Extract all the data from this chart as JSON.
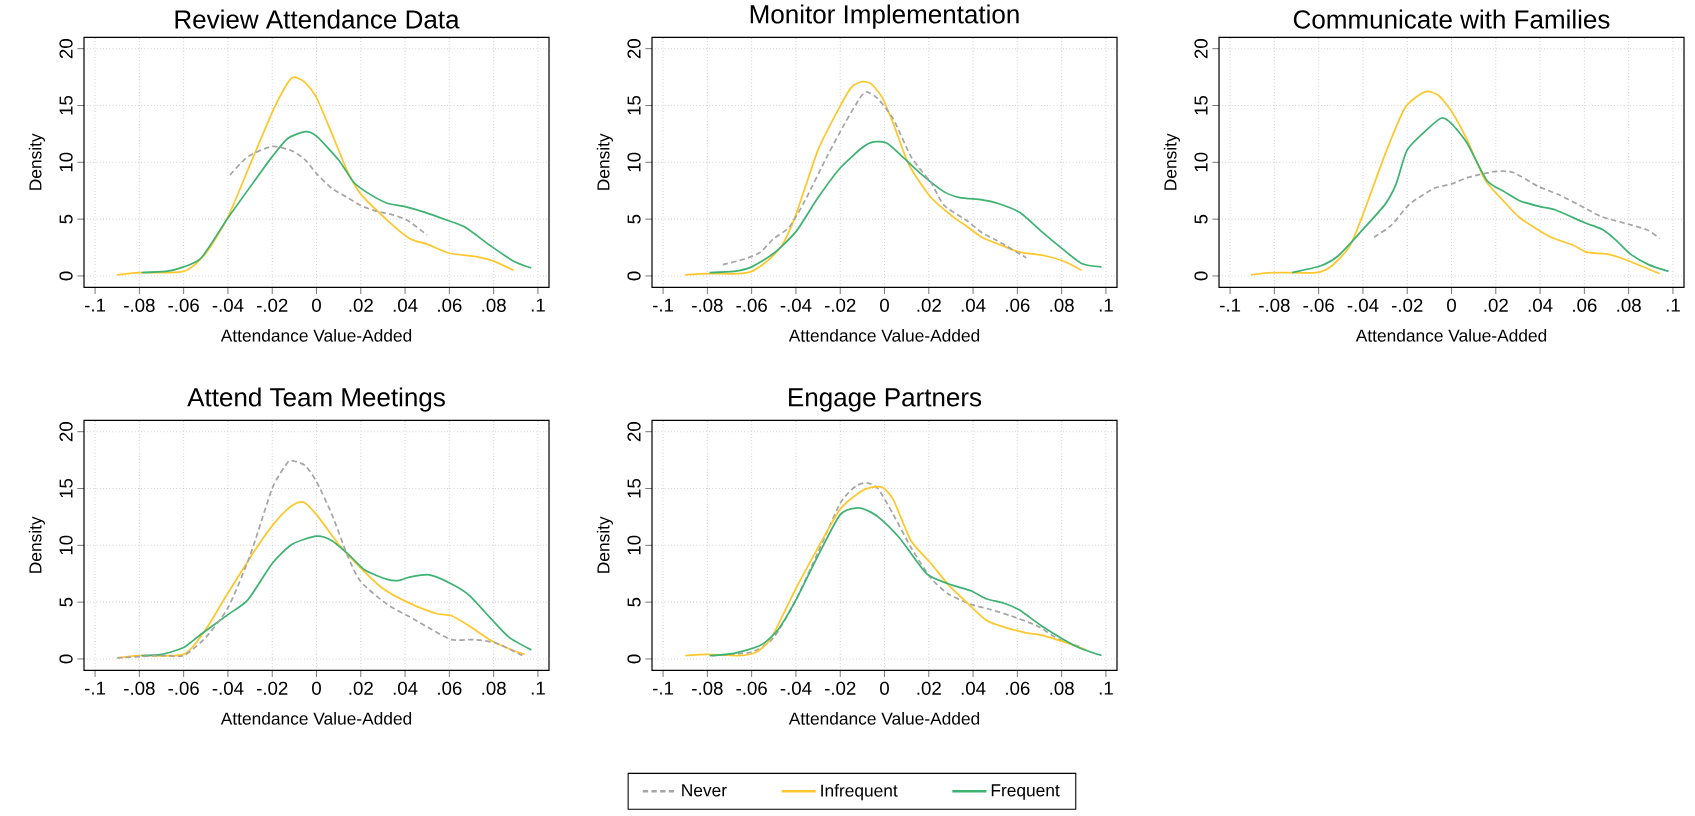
{
  "chart_data": [
    {
      "type": "line",
      "title": "Review Attendance Data",
      "xlabel": "Attendance Value-Added",
      "ylabel": "Density",
      "grid": true,
      "xlim": [
        -0.105,
        0.105
      ],
      "ylim": [
        -1,
        21
      ],
      "xticks": [
        {
          "value": -0.1,
          "label": "-.1"
        },
        {
          "value": -0.08,
          "label": "-.08"
        },
        {
          "value": -0.06,
          "label": "-.06"
        },
        {
          "value": -0.04,
          "label": "-.04"
        },
        {
          "value": -0.02,
          "label": "-.02"
        },
        {
          "value": 0,
          "label": "0"
        },
        {
          "value": 0.02,
          "label": ".02"
        },
        {
          "value": 0.04,
          "label": ".04"
        },
        {
          "value": 0.06,
          "label": ".06"
        },
        {
          "value": 0.08,
          "label": ".08"
        },
        {
          "value": 0.1,
          "label": ".1"
        }
      ],
      "yticks": [
        0,
        5,
        10,
        15,
        20
      ],
      "series": [
        {
          "color": "#a6a6a6",
          "line_style": "dashed",
          "x": [
            -0.039,
            -0.031,
            -0.02,
            -0.011,
            -0.005,
            0,
            0.007,
            0.014,
            0.02,
            0.027,
            0.034,
            0.041,
            0.05
          ],
          "values": [
            8.9,
            10.5,
            11.4,
            11.0,
            10.2,
            9.0,
            7.7,
            6.9,
            6.2,
            5.7,
            5.4,
            4.9,
            3.6
          ]
        },
        {
          "color": "#ffc72c",
          "line_style": "solid",
          "x": [
            -0.09,
            -0.08,
            -0.06,
            -0.05,
            -0.04,
            -0.03,
            -0.02,
            -0.013,
            -0.01,
            -0.005,
            0,
            0.007,
            0.014,
            0.02,
            0.032,
            0.042,
            0.05,
            0.06,
            0.072,
            0.08,
            0.089
          ],
          "values": [
            0.1,
            0.3,
            0.4,
            2.0,
            5.2,
            9.8,
            14.4,
            17.0,
            17.5,
            17.0,
            15.7,
            12.5,
            9.2,
            7.2,
            4.9,
            3.3,
            2.8,
            2.0,
            1.7,
            1.3,
            0.5
          ]
        },
        {
          "color": "#3cb371",
          "line_style": "solid",
          "x": [
            -0.079,
            -0.068,
            -0.06,
            -0.052,
            -0.04,
            -0.026,
            -0.02,
            -0.013,
            -0.005,
            0,
            0.01,
            0.017,
            0.024,
            0.032,
            0.04,
            0.049,
            0.059,
            0.067,
            0.079,
            0.089,
            0.097
          ],
          "values": [
            0.3,
            0.4,
            0.8,
            1.6,
            5.1,
            8.9,
            10.5,
            12.1,
            12.7,
            12.3,
            10.2,
            8.2,
            7.2,
            6.4,
            6.1,
            5.6,
            4.9,
            4.3,
            2.6,
            1.3,
            0.7
          ]
        }
      ]
    },
    {
      "type": "line",
      "title": "Monitor Implementation",
      "xlabel": "Attendance Value-Added",
      "ylabel": "Density",
      "grid": true,
      "xlim": [
        -0.105,
        0.105
      ],
      "ylim": [
        -1,
        21
      ],
      "xticks": [
        {
          "value": -0.1,
          "label": "-.1"
        },
        {
          "value": -0.08,
          "label": "-.08"
        },
        {
          "value": -0.06,
          "label": "-.06"
        },
        {
          "value": -0.04,
          "label": "-.04"
        },
        {
          "value": -0.02,
          "label": "-.02"
        },
        {
          "value": 0,
          "label": "0"
        },
        {
          "value": 0.02,
          "label": ".02"
        },
        {
          "value": 0.04,
          "label": ".04"
        },
        {
          "value": 0.06,
          "label": ".06"
        },
        {
          "value": 0.08,
          "label": ".08"
        },
        {
          "value": 0.1,
          "label": ".1"
        }
      ],
      "yticks": [
        0,
        5,
        10,
        15,
        20
      ],
      "series": [
        {
          "color": "#a6a6a6",
          "line_style": "dashed",
          "x": [
            -0.073,
            -0.063,
            -0.056,
            -0.05,
            -0.043,
            -0.036,
            -0.026,
            -0.018,
            -0.011,
            -0.008,
            -0.003,
            0.004,
            0.012,
            0.021,
            0.027,
            0.037,
            0.044,
            0.051,
            0.064
          ],
          "values": [
            1.0,
            1.5,
            2.1,
            3.3,
            4.3,
            6.6,
            10.5,
            13.4,
            15.7,
            16.2,
            15.6,
            13.8,
            10.5,
            8.2,
            6.2,
            4.9,
            3.8,
            3.1,
            1.6
          ]
        },
        {
          "color": "#ffc72c",
          "line_style": "solid",
          "x": [
            -0.09,
            -0.08,
            -0.066,
            -0.06,
            -0.053,
            -0.046,
            -0.04,
            -0.03,
            -0.021,
            -0.015,
            -0.01,
            -0.006,
            -0.001,
            0.004,
            0.011,
            0.021,
            0.031,
            0.037,
            0.044,
            0.054,
            0.061,
            0.072,
            0.081,
            0.089
          ],
          "values": [
            0.1,
            0.2,
            0.2,
            0.4,
            1.3,
            2.8,
            5.4,
            11.1,
            14.6,
            16.6,
            17.1,
            16.9,
            15.7,
            13.4,
            9.8,
            6.9,
            5.2,
            4.4,
            3.4,
            2.6,
            2.1,
            1.8,
            1.3,
            0.5
          ]
        },
        {
          "color": "#3cb371",
          "line_style": "solid",
          "x": [
            -0.079,
            -0.068,
            -0.06,
            -0.05,
            -0.04,
            -0.03,
            -0.02,
            -0.01,
            -0.005,
            0.001,
            0.007,
            0.017,
            0.027,
            0.034,
            0.044,
            0.051,
            0.061,
            0.071,
            0.079,
            0.089,
            0.098
          ],
          "values": [
            0.3,
            0.4,
            0.8,
            2.0,
            3.9,
            6.9,
            9.5,
            11.3,
            11.8,
            11.7,
            10.7,
            8.9,
            7.4,
            6.9,
            6.7,
            6.4,
            5.6,
            3.9,
            2.6,
            1.1,
            0.8
          ]
        }
      ]
    },
    {
      "type": "line",
      "title": "Communicate with Families",
      "xlabel": "Attendance Value-Added",
      "ylabel": "Density",
      "grid": true,
      "xlim": [
        -0.105,
        0.105
      ],
      "ylim": [
        -1,
        21
      ],
      "xticks": [
        {
          "value": -0.1,
          "label": "-.1"
        },
        {
          "value": -0.08,
          "label": "-.08"
        },
        {
          "value": -0.06,
          "label": "-.06"
        },
        {
          "value": -0.04,
          "label": "-.04"
        },
        {
          "value": -0.02,
          "label": "-.02"
        },
        {
          "value": 0,
          "label": "0"
        },
        {
          "value": 0.02,
          "label": ".02"
        },
        {
          "value": 0.04,
          "label": ".04"
        },
        {
          "value": 0.06,
          "label": ".06"
        },
        {
          "value": 0.08,
          "label": ".08"
        },
        {
          "value": 0.1,
          "label": ".1"
        }
      ],
      "yticks": [
        0,
        5,
        10,
        15,
        20
      ],
      "series": [
        {
          "color": "#a6a6a6",
          "line_style": "dashed",
          "x": [
            -0.035,
            -0.027,
            -0.019,
            -0.008,
            0,
            0.008,
            0.02,
            0.028,
            0.039,
            0.049,
            0.06,
            0.068,
            0.081,
            0.089,
            0.094
          ],
          "values": [
            3.4,
            4.5,
            6.3,
            7.7,
            8.1,
            8.7,
            9.2,
            9.1,
            7.9,
            7.1,
            6.0,
            5.2,
            4.5,
            4.0,
            3.3
          ]
        },
        {
          "color": "#ffc72c",
          "line_style": "solid",
          "x": [
            -0.0905,
            -0.08,
            -0.061,
            -0.054,
            -0.046,
            -0.04,
            -0.03,
            -0.021,
            -0.012,
            -0.006,
            0,
            0.007,
            0.015,
            0.023,
            0.031,
            0.044,
            0.055,
            0.061,
            0.071,
            0.079,
            0.094
          ],
          "values": [
            0.1,
            0.3,
            0.3,
            0.9,
            2.6,
            5.4,
            10.7,
            14.8,
            16.2,
            15.9,
            14.5,
            12.0,
            8.5,
            6.7,
            5.1,
            3.5,
            2.7,
            2.1,
            1.9,
            1.4,
            0.2
          ]
        },
        {
          "color": "#3cb371",
          "line_style": "solid",
          "x": [
            -0.072,
            -0.059,
            -0.051,
            -0.04,
            -0.03,
            -0.025,
            -0.02,
            -0.011,
            -0.0045,
            0,
            0.007,
            0.016,
            0.024,
            0.031,
            0.04,
            0.047,
            0.06,
            0.068,
            0.074,
            0.081,
            0.089,
            0.098
          ],
          "values": [
            0.3,
            0.9,
            1.8,
            4.1,
            6.3,
            8.1,
            11.1,
            12.9,
            13.9,
            13.4,
            11.7,
            8.4,
            7.4,
            6.6,
            6.1,
            5.8,
            4.7,
            4.1,
            3.2,
            1.9,
            1.0,
            0.4
          ]
        }
      ]
    },
    {
      "type": "line",
      "title": "Attend Team Meetings",
      "xlabel": "Attendance Value-Added",
      "ylabel": "Density",
      "grid": true,
      "xlim": [
        -0.105,
        0.105
      ],
      "ylim": [
        -1,
        21
      ],
      "xticks": [
        {
          "value": -0.1,
          "label": "-.1"
        },
        {
          "value": -0.08,
          "label": "-.08"
        },
        {
          "value": -0.06,
          "label": "-.06"
        },
        {
          "value": -0.04,
          "label": "-.04"
        },
        {
          "value": -0.02,
          "label": "-.02"
        },
        {
          "value": 0,
          "label": "0"
        },
        {
          "value": 0.02,
          "label": ".02"
        },
        {
          "value": 0.04,
          "label": ".04"
        },
        {
          "value": 0.06,
          "label": ".06"
        },
        {
          "value": 0.08,
          "label": ".08"
        },
        {
          "value": 0.1,
          "label": ".1"
        }
      ],
      "yticks": [
        0,
        5,
        10,
        15,
        20
      ],
      "series": [
        {
          "color": "#a6a6a6",
          "line_style": "dashed",
          "x": [
            -0.09,
            -0.07,
            -0.06,
            -0.05,
            -0.04,
            -0.03,
            -0.02,
            -0.013,
            -0.01,
            -0.005,
            0,
            0.007,
            0.014,
            0.02,
            0.032,
            0.044,
            0.052,
            0.061,
            0.071,
            0.081,
            0.093
          ],
          "values": [
            0.1,
            0.3,
            0.3,
            1.9,
            4.5,
            9.1,
            15.0,
            17.3,
            17.4,
            17.0,
            15.6,
            12.7,
            9.1,
            6.8,
            4.8,
            3.5,
            2.6,
            1.7,
            1.7,
            1.4,
            0.3
          ]
        },
        {
          "color": "#ffc72c",
          "line_style": "solid",
          "x": [
            -0.09,
            -0.08,
            -0.06,
            -0.05,
            -0.04,
            -0.026,
            -0.018,
            -0.011,
            -0.006,
            0,
            0.01,
            0.02,
            0.03,
            0.041,
            0.054,
            0.061,
            0.069,
            0.079,
            0.087,
            0.094
          ],
          "values": [
            0.1,
            0.3,
            0.4,
            2.6,
            5.8,
            10.1,
            12.2,
            13.5,
            13.8,
            12.7,
            10.1,
            8.0,
            6.2,
            5.0,
            4.0,
            3.8,
            2.9,
            1.6,
            0.9,
            0.4
          ]
        },
        {
          "color": "#3cb371",
          "line_style": "solid",
          "x": [
            -0.079,
            -0.07,
            -0.06,
            -0.052,
            -0.04,
            -0.031,
            -0.02,
            -0.011,
            0,
            0.007,
            0.015,
            0.022,
            0.032,
            0.037,
            0.042,
            0.051,
            0.061,
            0.069,
            0.079,
            0.087,
            0.097
          ],
          "values": [
            0.3,
            0.4,
            1.0,
            2.2,
            3.9,
            5.2,
            8.4,
            10.1,
            10.8,
            10.4,
            9.1,
            7.8,
            7.0,
            6.9,
            7.2,
            7.4,
            6.6,
            5.6,
            3.5,
            1.9,
            0.8
          ]
        }
      ]
    },
    {
      "type": "line",
      "title": "Engage Partners",
      "xlabel": "Attendance Value-Added",
      "ylabel": "Density",
      "grid": true,
      "legend": "bottom",
      "xlim": [
        -0.105,
        0.105
      ],
      "ylim": [
        -1,
        21
      ],
      "xticks": [
        {
          "value": -0.1,
          "label": "-.1"
        },
        {
          "value": -0.08,
          "label": "-.08"
        },
        {
          "value": -0.06,
          "label": "-.06"
        },
        {
          "value": -0.04,
          "label": "-.04"
        },
        {
          "value": -0.02,
          "label": "-.02"
        },
        {
          "value": 0,
          "label": "0"
        },
        {
          "value": 0.02,
          "label": ".02"
        },
        {
          "value": 0.04,
          "label": ".04"
        },
        {
          "value": 0.06,
          "label": ".06"
        },
        {
          "value": 0.08,
          "label": ".08"
        },
        {
          "value": 0.1,
          "label": ".1"
        }
      ],
      "yticks": [
        0,
        5,
        10,
        15,
        20
      ],
      "series": [
        {
          "name": "Never",
          "color": "#a6a6a6",
          "line_style": "dashed",
          "x": [
            -0.078,
            -0.06,
            -0.05,
            -0.04,
            -0.03,
            -0.02,
            -0.013,
            -0.008,
            -0.003,
            0.004,
            0.012,
            0.021,
            0.029,
            0.039,
            0.047,
            0.057,
            0.069,
            0.079,
            0.088
          ],
          "values": [
            0.3,
            0.6,
            1.9,
            5.2,
            9.4,
            13.7,
            15.2,
            15.5,
            15.0,
            12.7,
            9.8,
            7.1,
            5.7,
            4.8,
            4.4,
            3.8,
            2.9,
            1.7,
            1.1
          ]
        },
        {
          "name": "Infrequent",
          "color": "#ffc72c",
          "line_style": "solid",
          "x": [
            -0.09,
            -0.08,
            -0.066,
            -0.058,
            -0.051,
            -0.04,
            -0.03,
            -0.02,
            -0.011,
            -0.006,
            -0.001,
            0.004,
            0.012,
            0.021,
            0.029,
            0.037,
            0.046,
            0.054,
            0.064,
            0.071,
            0.081,
            0.091
          ],
          "values": [
            0.3,
            0.4,
            0.3,
            0.6,
            1.9,
            6.2,
            9.8,
            13.2,
            14.7,
            15.1,
            15.1,
            14.0,
            10.4,
            8.4,
            6.5,
            5.0,
            3.4,
            2.8,
            2.3,
            2.1,
            1.5,
            0.8
          ]
        },
        {
          "name": "Frequent",
          "color": "#3cb371",
          "line_style": "solid",
          "x": [
            -0.079,
            -0.068,
            -0.056,
            -0.048,
            -0.04,
            -0.03,
            -0.02,
            -0.012,
            -0.006,
            -0.001,
            0.007,
            0.019,
            0.029,
            0.039,
            0.046,
            0.054,
            0.061,
            0.071,
            0.081,
            0.089,
            0.098
          ],
          "values": [
            0.3,
            0.5,
            1.2,
            2.6,
            5.2,
            9.1,
            12.7,
            13.3,
            12.9,
            12.2,
            10.6,
            7.5,
            6.6,
            6.0,
            5.3,
            4.9,
            4.3,
            2.9,
            1.7,
            0.9,
            0.3
          ]
        }
      ]
    }
  ]
}
